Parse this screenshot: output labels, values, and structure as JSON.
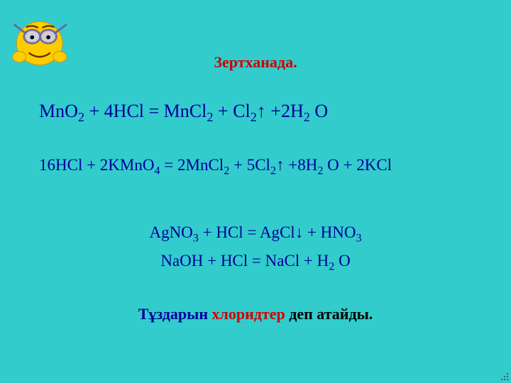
{
  "title": {
    "text": "Зертханада.",
    "fontsize": 22,
    "color": "#cc0000"
  },
  "equations": {
    "eq1": {
      "parts": [
        "MnO",
        "2",
        " + 4HCl = MnCl",
        "2",
        " + Cl",
        "2",
        "↑ +2H",
        "2",
        " O"
      ],
      "fontsize": 26,
      "color": "#000099"
    },
    "eq2": {
      "parts": [
        "16HCl + 2KMnO",
        "4",
        " = 2MnCl",
        "2",
        " + 5Cl",
        "2",
        "↑ +8H",
        "2",
        " O + 2KCl"
      ],
      "fontsize": 23,
      "color": "#000099"
    },
    "eq3": {
      "parts": [
        "AgNO",
        "3",
        " + HCl = AgCl↓ + HNO",
        "3"
      ],
      "fontsize": 23,
      "color": "#000099"
    },
    "eq4": {
      "parts": [
        "NaOH + HCl = NaCl + H",
        "2",
        " O"
      ],
      "fontsize": 23,
      "color": "#000099"
    }
  },
  "footer": {
    "p1": "Тұздарын ",
    "p2": "хлоридтер ",
    "p3": "деп атайды.",
    "fontsize": 22
  },
  "mascot": {
    "body_color": "#ffcc00",
    "shadow_color": "#cc9900",
    "glasses_color": "#6666aa",
    "highlight": "#ffff66"
  },
  "background_color": "#33cccc"
}
